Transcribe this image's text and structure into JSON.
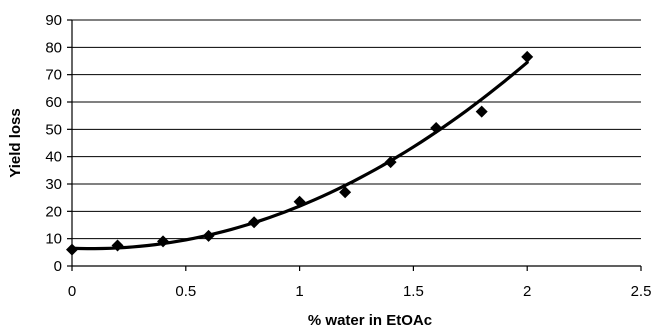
{
  "chart_data": {
    "type": "scatter",
    "title": "",
    "xlabel": "% water in EtOAc",
    "ylabel": "Yield loss",
    "xlim": [
      0,
      2.5
    ],
    "ylim": [
      0,
      90
    ],
    "x_ticks": [
      0,
      0.5,
      1,
      1.5,
      2,
      2.5
    ],
    "x_tick_labels": [
      "0",
      "0.5",
      "1",
      "1.5",
      "2",
      "2.5"
    ],
    "y_ticks": [
      0,
      10,
      20,
      30,
      40,
      50,
      60,
      70,
      80,
      90
    ],
    "y_tick_labels": [
      "0",
      "10",
      "20",
      "30",
      "40",
      "50",
      "60",
      "70",
      "80",
      "90"
    ],
    "grid": "horizontal",
    "legend": "none",
    "series": [
      {
        "marker": "diamond",
        "color": "#000000",
        "x": [
          0,
          0.2,
          0.4,
          0.6,
          0.8,
          1.0,
          1.2,
          1.4,
          1.6,
          1.8,
          2.0
        ],
        "y": [
          6,
          7.5,
          9,
          11,
          16,
          23.5,
          27,
          38,
          50.5,
          56.5,
          76.5
        ]
      }
    ],
    "trendline": {
      "type": "polynomial",
      "x_range": [
        0,
        2.0
      ],
      "points": [
        [
          0,
          6.5
        ],
        [
          0.5,
          9.5
        ],
        [
          1.0,
          22
        ],
        [
          1.5,
          43.5
        ],
        [
          2.0,
          74.5
        ]
      ]
    }
  }
}
